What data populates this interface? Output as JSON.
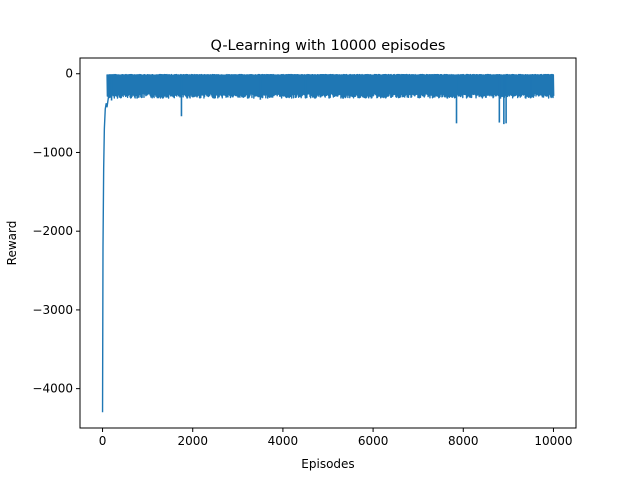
{
  "chart_data": {
    "type": "line",
    "title": "Q-Learning with 10000 episodes",
    "xlabel": "Episodes",
    "ylabel": "Reward",
    "xlim": [
      -500,
      10500
    ],
    "ylim": [
      -4500,
      200
    ],
    "xticks": [
      0,
      2000,
      4000,
      6000,
      8000,
      10000
    ],
    "xtick_labels": [
      "0",
      "2000",
      "4000",
      "6000",
      "8000",
      "10000"
    ],
    "yticks": [
      0,
      -1000,
      -2000,
      -3000,
      -4000
    ],
    "ytick_labels": [
      "0",
      "−1000",
      "−2000",
      "−3000",
      "−4000"
    ],
    "grid": false,
    "legend": "none",
    "line_color": "#1f77b4",
    "series": [
      {
        "x": [
          0,
          10,
          25,
          40,
          60,
          80,
          100,
          130,
          160,
          200,
          240,
          300,
          350,
          400,
          500,
          600,
          700,
          800,
          900,
          1000,
          1750,
          2500,
          3500,
          4500,
          5500,
          6500,
          7500,
          7850,
          8200,
          8800,
          8900,
          8950,
          9500,
          10000
        ],
        "y": [
          -4300,
          -2200,
          -1200,
          -700,
          -450,
          -380,
          -420,
          -300,
          -260,
          -340,
          -280,
          -250,
          -300,
          -230,
          -220,
          -240,
          -210,
          -230,
          -200,
          -210,
          -540,
          -300,
          -330,
          -310,
          -300,
          -280,
          -300,
          -630,
          -290,
          -620,
          -640,
          -630,
          -310,
          -290
        ]
      }
    ],
    "band_upper": -20,
    "band_lower": -250
  }
}
